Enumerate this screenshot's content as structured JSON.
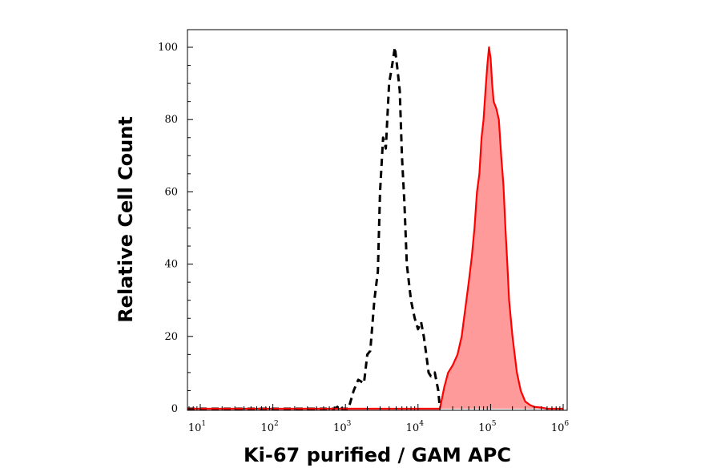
{
  "chart_data": {
    "type": "area",
    "title": "",
    "xlabel": "Ki-67 purified / GAM APC",
    "ylabel": "Relative Cell Count",
    "x_scale": "log",
    "xlim": [
      10,
      1000000
    ],
    "ylim": [
      0,
      100
    ],
    "grid": false,
    "legend": "none",
    "x_ticks": [
      {
        "base": "10",
        "exp": "1",
        "value": 10
      },
      {
        "base": "10",
        "exp": "2",
        "value": 100
      },
      {
        "base": "10",
        "exp": "3",
        "value": 1000
      },
      {
        "base": "10",
        "exp": "4",
        "value": 10000
      },
      {
        "base": "10",
        "exp": "5",
        "value": 100000
      },
      {
        "base": "10",
        "exp": "6",
        "value": 1000000
      }
    ],
    "y_ticks": [
      "0",
      "20",
      "40",
      "60",
      "80",
      "100"
    ],
    "series": [
      {
        "style": "dashed",
        "color": "#000000",
        "fill": "none",
        "x": [
          6,
          700,
          780,
          850,
          900,
          1100,
          1300,
          1500,
          1800,
          2000,
          2200,
          2500,
          2800,
          3000,
          3300,
          3600,
          4000,
          4400,
          4800,
          5200,
          5600,
          6000,
          6500,
          7000,
          8000,
          9000,
          10000,
          11000,
          12000,
          13000,
          14000,
          15000,
          17000,
          19000,
          20000
        ],
        "y": [
          0,
          0,
          0.5,
          1,
          0,
          0,
          5,
          8,
          7,
          15,
          16,
          30,
          38,
          60,
          75,
          72,
          90,
          95,
          100,
          94,
          88,
          70,
          57,
          40,
          30,
          25,
          22,
          24,
          20,
          15,
          10,
          9,
          10,
          5,
          0
        ]
      },
      {
        "style": "solid",
        "color": "#ff0000",
        "fill": "#ff9a9a",
        "x": [
          6,
          20000,
          23000,
          26000,
          30000,
          35000,
          40000,
          45000,
          50000,
          55000,
          60000,
          65000,
          70000,
          75000,
          80000,
          85000,
          90000,
          95000,
          100000,
          105000,
          110000,
          120000,
          130000,
          140000,
          150000,
          160000,
          170000,
          180000,
          200000,
          230000,
          260000,
          300000,
          350000,
          400000,
          500000,
          600000,
          1000000
        ],
        "y": [
          0,
          0,
          6,
          10,
          12,
          15,
          20,
          28,
          35,
          42,
          50,
          60,
          65,
          75,
          80,
          88,
          95,
          100,
          97,
          90,
          85,
          83,
          80,
          70,
          62,
          50,
          40,
          30,
          20,
          10,
          5,
          2,
          1,
          0.5,
          0.3,
          0,
          0
        ]
      }
    ]
  }
}
